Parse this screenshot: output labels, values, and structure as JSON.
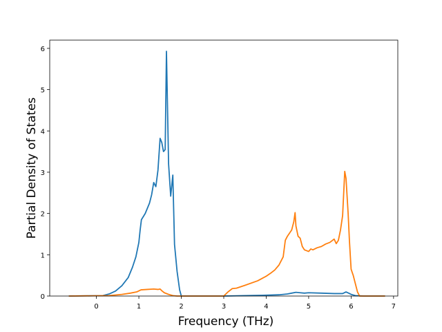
{
  "chart_data": {
    "type": "line",
    "title": "",
    "xlabel": "Frequency (THz)",
    "ylabel": "Partial Density of States",
    "xlim": [
      -1.1,
      7.1
    ],
    "ylim": [
      0,
      6.2
    ],
    "xticks": [
      0,
      1,
      2,
      3,
      4,
      5,
      6,
      7
    ],
    "yticks": [
      0,
      1,
      2,
      3,
      4,
      5,
      6
    ],
    "grid": false,
    "legend": "none",
    "series": [
      {
        "color": "#1f77b4",
        "x": [
          -0.65,
          0.15,
          0.3,
          0.45,
          0.6,
          0.75,
          0.85,
          0.93,
          1.0,
          1.03,
          1.06,
          1.15,
          1.25,
          1.3,
          1.35,
          1.4,
          1.45,
          1.5,
          1.54,
          1.58,
          1.62,
          1.65,
          1.7,
          1.75,
          1.8,
          1.84,
          1.9,
          1.96,
          2.0,
          2.3,
          3.0,
          3.5,
          4.0,
          4.3,
          4.5,
          4.6,
          4.7,
          4.8,
          4.9,
          5.0,
          5.3,
          5.6,
          5.8,
          5.88,
          5.92,
          6.0,
          6.1,
          6.3,
          6.8
        ],
        "values": [
          0.0,
          0.01,
          0.05,
          0.12,
          0.25,
          0.45,
          0.7,
          0.95,
          1.3,
          1.6,
          1.85,
          2.0,
          2.25,
          2.45,
          2.75,
          2.65,
          3.05,
          3.82,
          3.72,
          3.5,
          3.55,
          5.93,
          3.2,
          2.42,
          2.93,
          1.25,
          0.6,
          0.15,
          0.0,
          0.0,
          0.0,
          0.01,
          0.02,
          0.03,
          0.05,
          0.07,
          0.09,
          0.08,
          0.07,
          0.08,
          0.07,
          0.06,
          0.06,
          0.1,
          0.08,
          0.04,
          0.01,
          0.0,
          0.0
        ]
      },
      {
        "color": "#ff7f0e",
        "x": [
          -0.65,
          0.3,
          0.6,
          0.8,
          0.95,
          1.05,
          1.2,
          1.35,
          1.45,
          1.5,
          1.55,
          1.6,
          1.7,
          1.8,
          1.9,
          2.0,
          2.5,
          3.0,
          3.1,
          3.2,
          3.3,
          3.5,
          3.8,
          4.0,
          4.1,
          4.2,
          4.3,
          4.4,
          4.45,
          4.5,
          4.6,
          4.65,
          4.68,
          4.7,
          4.75,
          4.8,
          4.85,
          4.9,
          5.0,
          5.05,
          5.1,
          5.2,
          5.3,
          5.4,
          5.5,
          5.6,
          5.65,
          5.7,
          5.75,
          5.8,
          5.85,
          5.88,
          5.93,
          5.96,
          6.0,
          6.05,
          6.1,
          6.15,
          6.2,
          6.5,
          6.8
        ],
        "values": [
          0.0,
          0.01,
          0.04,
          0.07,
          0.1,
          0.15,
          0.16,
          0.17,
          0.16,
          0.17,
          0.12,
          0.08,
          0.04,
          0.01,
          0.0,
          0.0,
          0.0,
          0.0,
          0.1,
          0.18,
          0.19,
          0.26,
          0.37,
          0.48,
          0.55,
          0.63,
          0.75,
          0.95,
          1.35,
          1.45,
          1.6,
          1.8,
          2.02,
          1.7,
          1.45,
          1.4,
          1.2,
          1.12,
          1.08,
          1.14,
          1.12,
          1.17,
          1.2,
          1.26,
          1.3,
          1.38,
          1.27,
          1.35,
          1.6,
          1.95,
          3.02,
          2.85,
          2.0,
          1.35,
          0.65,
          0.5,
          0.3,
          0.1,
          0.0,
          0.0,
          0.0
        ]
      }
    ]
  }
}
